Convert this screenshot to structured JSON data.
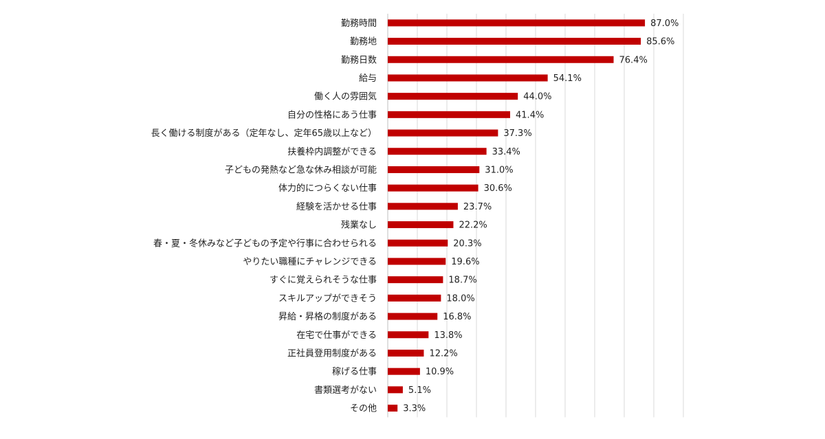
{
  "chart_data": {
    "type": "bar",
    "orientation": "horizontal",
    "categories": [
      "勤務時間",
      "勤務地",
      "勤務日数",
      "給与",
      "働く人の雰囲気",
      "自分の性格にあう仕事",
      "長く働ける制度がある（定年なし、定年65歳以上など）",
      "扶養枠内調整ができる",
      "子どもの発熱など急な休み相談が可能",
      "体力的につらくない仕事",
      "経験を活かせる仕事",
      "残業なし",
      "春・夏・冬休みなど子どもの予定や行事に合わせられる",
      "やりたい職種にチャレンジできる",
      "すぐに覚えられそうな仕事",
      "スキルアップができそう",
      "昇給・昇格の制度がある",
      "在宅で仕事ができる",
      "正社員登用制度がある",
      "稼げる仕事",
      "書類選考がない",
      "その他"
    ],
    "values": [
      87.0,
      85.6,
      76.4,
      54.1,
      44.0,
      41.4,
      37.3,
      33.4,
      31.0,
      30.6,
      23.7,
      22.2,
      20.3,
      19.6,
      18.7,
      18.0,
      16.8,
      13.8,
      12.2,
      10.9,
      5.1,
      3.3
    ],
    "value_labels": [
      "87.0%",
      "85.6%",
      "76.4%",
      "54.1%",
      "44.0%",
      "41.4%",
      "37.3%",
      "33.4%",
      "31.0%",
      "30.6%",
      "23.7%",
      "22.2%",
      "20.3%",
      "19.6%",
      "18.7%",
      "18.0%",
      "16.8%",
      "13.8%",
      "12.2%",
      "10.9%",
      "5.1%",
      "3.3%"
    ],
    "xlim": [
      0,
      100
    ],
    "grid": true,
    "legend": "none",
    "bar_color": "#c00000",
    "title": "",
    "xlabel": "",
    "ylabel": ""
  }
}
